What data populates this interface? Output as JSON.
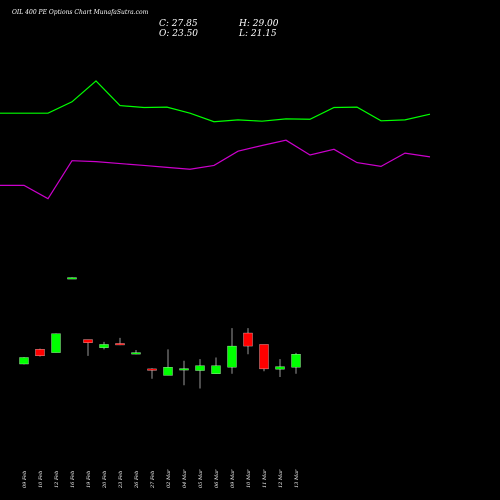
{
  "header": {
    "title": "OIL 400 PE Options  Chart MunafaSutra.com",
    "close": "C: 27.85",
    "open": "O: 23.50",
    "high": "H: 29.00",
    "low": "L: 21.15"
  },
  "chart_data": {
    "type": "candlestick",
    "dates": [
      "09 Feb",
      "10 Feb",
      "12 Feb",
      "16 Feb",
      "19 Feb",
      "20 Feb",
      "23 Feb",
      "26 Feb",
      "27 Feb",
      "02 Mar",
      "04 Mar",
      "05 Mar",
      "06 Mar",
      "09 Mar",
      "10 Mar",
      "11 Mar",
      "12 Mar",
      "13 Mar"
    ],
    "candles": [
      {
        "o": 3.5,
        "c": 5.5,
        "h": 5.6,
        "l": 3.4,
        "color": "green"
      },
      {
        "o": 8.0,
        "c": 6.0,
        "h": 8.2,
        "l": 5.8,
        "color": "red"
      },
      {
        "o": 7.0,
        "c": 12.8,
        "h": 12.9,
        "l": 7.0,
        "color": "green"
      },
      {
        "o": 30.0,
        "c": 30.0,
        "h": 30.1,
        "l": 29.9,
        "color": "green"
      },
      {
        "o": 11.0,
        "c": 10.0,
        "h": 11.0,
        "l": 6.0,
        "color": "red"
      },
      {
        "o": 8.5,
        "c": 9.5,
        "h": 10.3,
        "l": 8.0,
        "color": "green"
      },
      {
        "o": 9.8,
        "c": 9.5,
        "h": 11.5,
        "l": 9.3,
        "color": "red"
      },
      {
        "o": 6.8,
        "c": 7.0,
        "h": 7.8,
        "l": 6.5,
        "color": "green"
      },
      {
        "o": 2.0,
        "c": 1.7,
        "h": 2.2,
        "l": -1.0,
        "color": "red"
      },
      {
        "o": 0.0,
        "c": 2.5,
        "h": 8.0,
        "l": 0.0,
        "color": "green"
      },
      {
        "o": 2.0,
        "c": 2.1,
        "h": 4.5,
        "l": -3.0,
        "color": "green"
      },
      {
        "o": 1.5,
        "c": 3.0,
        "h": 5.0,
        "l": -4.0,
        "color": "green"
      },
      {
        "o": 0.5,
        "c": 3.0,
        "h": 5.5,
        "l": 0.5,
        "color": "green"
      },
      {
        "o": 2.5,
        "c": 9.0,
        "h": 14.5,
        "l": 0.5,
        "color": "green"
      },
      {
        "o": 13.0,
        "c": 9.0,
        "h": 14.5,
        "l": 6.5,
        "color": "red"
      },
      {
        "o": 9.5,
        "c": 2.0,
        "h": 9.5,
        "l": 1.3,
        "color": "red"
      },
      {
        "o": 1.9,
        "c": 2.7,
        "h": 5.0,
        "l": -0.5,
        "color": "green"
      },
      {
        "o": 2.5,
        "c": 6.5,
        "h": 6.9,
        "l": 0.5,
        "color": "green"
      }
    ],
    "ylim": [
      -6,
      36
    ],
    "green_line": [
      72,
      72,
      72,
      78,
      89,
      76,
      75,
      75.2,
      72,
      67.5,
      68.5,
      67.8,
      69,
      68.8,
      75,
      75.2,
      68,
      68.5,
      71.5
    ],
    "magenta_line": [
      34,
      34,
      27,
      47,
      46.5,
      45.5,
      44.5,
      43.5,
      42.5,
      44.5,
      52,
      55,
      57.8,
      50,
      53,
      46,
      44,
      51,
      49,
      43
    ],
    "line_ylim": [
      0,
      100
    ],
    "grid": false,
    "legend": "none"
  }
}
